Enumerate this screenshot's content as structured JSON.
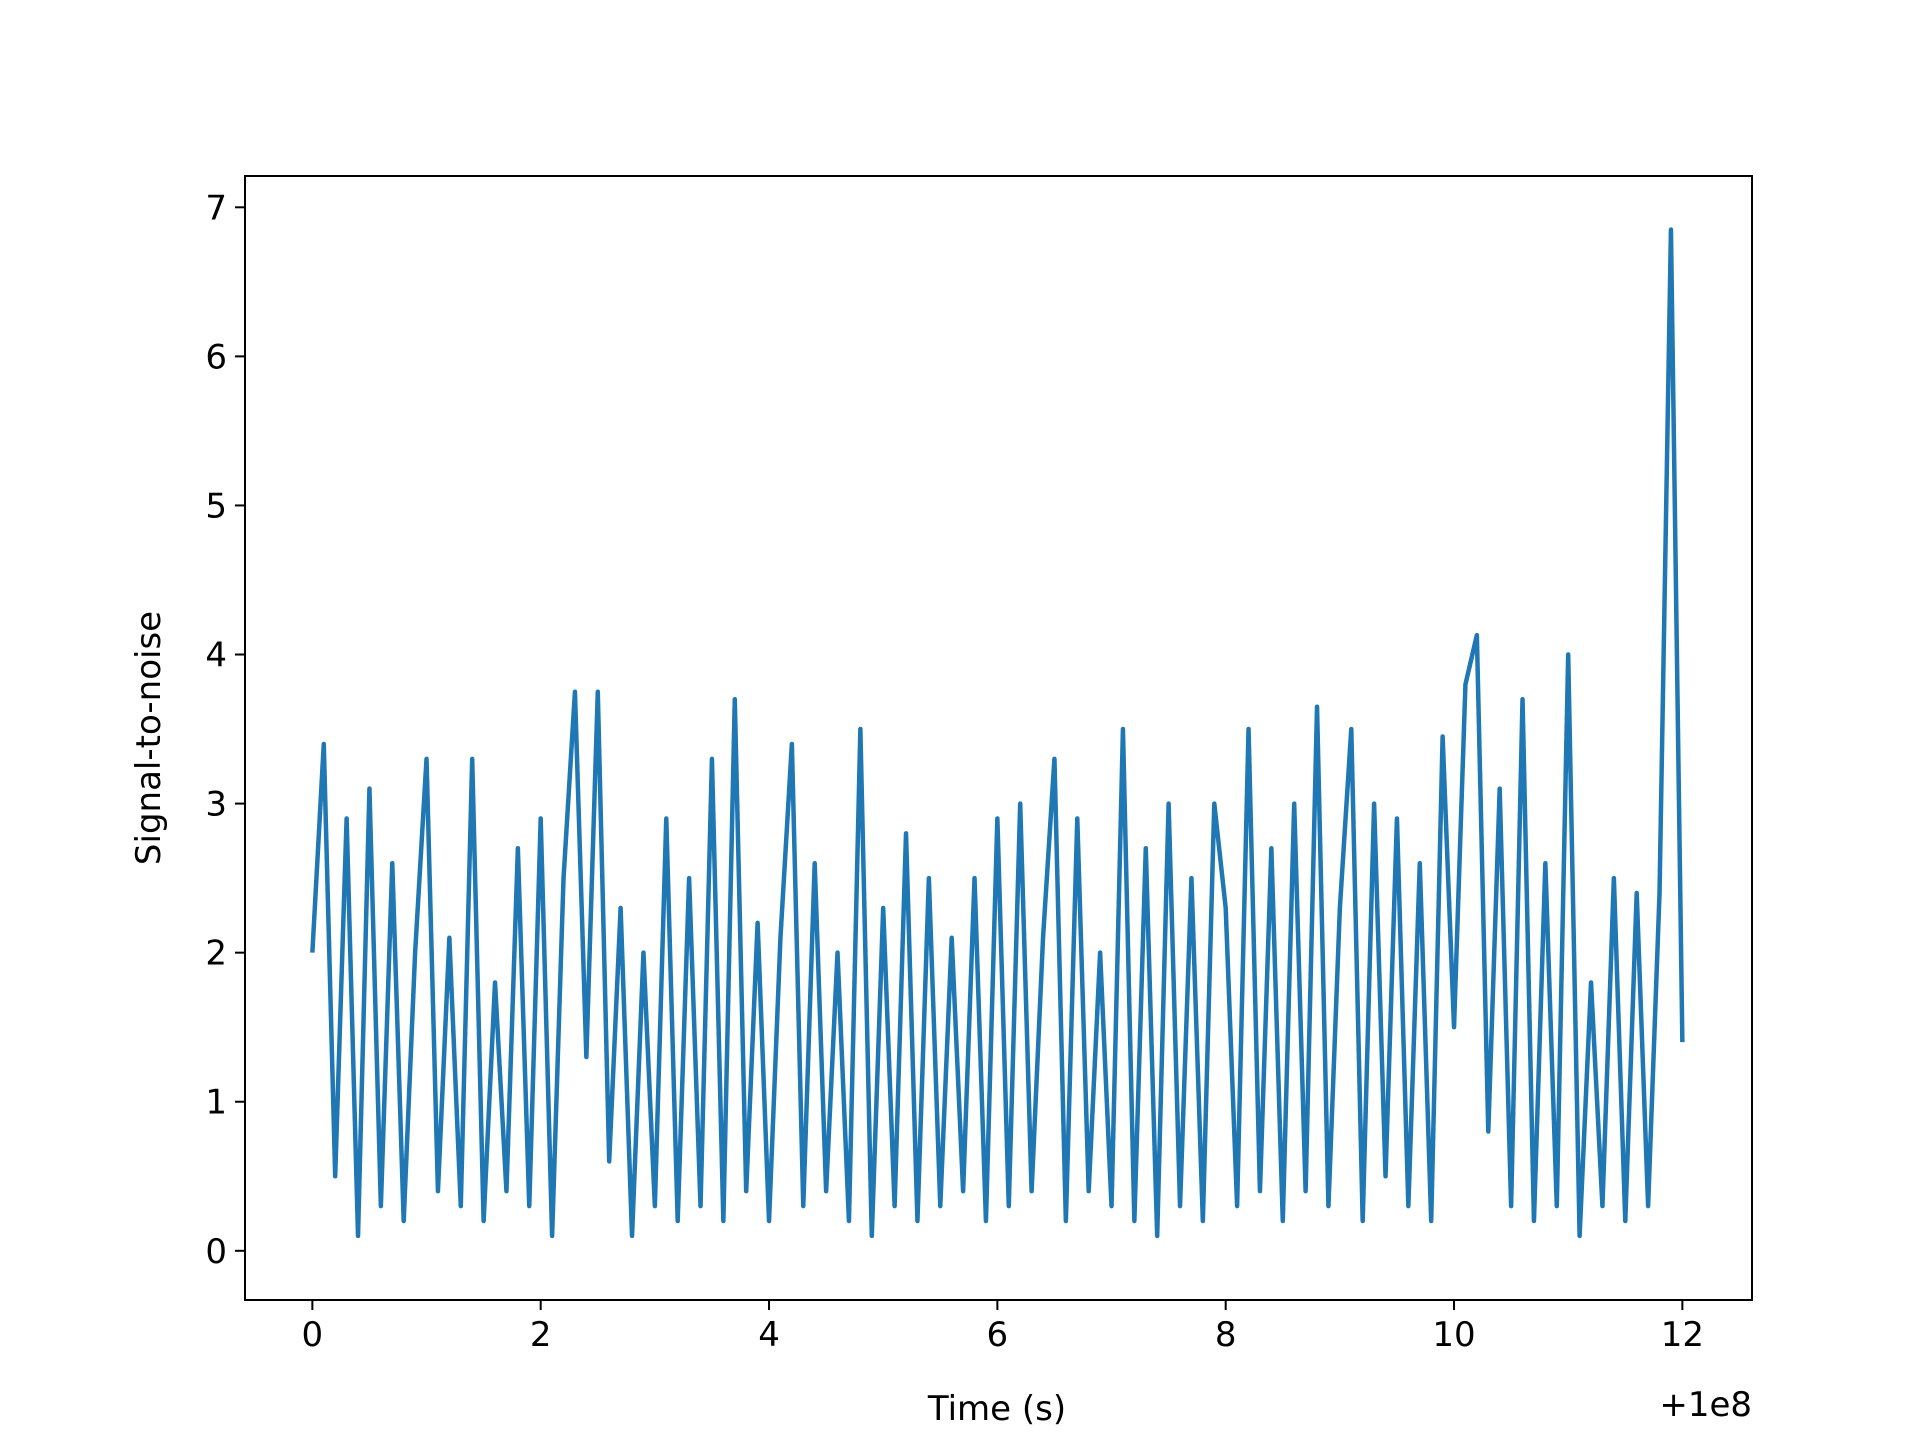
{
  "chart_data": {
    "type": "line",
    "xlabel": "Time (s)",
    "ylabel": "Signal-to-noise",
    "x_offset_label": "+1e8",
    "color": "#1f77b4",
    "x": [
      0,
      0.1,
      0.2,
      0.3,
      0.4,
      0.5,
      0.6,
      0.7,
      0.8,
      0.9,
      1,
      1.1,
      1.2,
      1.3,
      1.4,
      1.5,
      1.6,
      1.7,
      1.8,
      1.9,
      2,
      2.1,
      2.2,
      2.3,
      2.4,
      2.5,
      2.6,
      2.7,
      2.8,
      2.9,
      3,
      3.1,
      3.2,
      3.3,
      3.4,
      3.5,
      3.6,
      3.7,
      3.8,
      3.9,
      4,
      4.1,
      4.2,
      4.3,
      4.4,
      4.5,
      4.6,
      4.7,
      4.8,
      4.9,
      5,
      5.1,
      5.2,
      5.3,
      5.4,
      5.5,
      5.6,
      5.7,
      5.8,
      5.9,
      6,
      6.1,
      6.2,
      6.3,
      6.4,
      6.5,
      6.6,
      6.7,
      6.8,
      6.9,
      7,
      7.1,
      7.2,
      7.3,
      7.4,
      7.5,
      7.6,
      7.7,
      7.8,
      7.9,
      8,
      8.1,
      8.2,
      8.3,
      8.4,
      8.5,
      8.6,
      8.7,
      8.8,
      8.9,
      9,
      9.1,
      9.2,
      9.3,
      9.4,
      9.5,
      9.6,
      9.7,
      9.8,
      9.9,
      10,
      10.1,
      10.2,
      10.3,
      10.4,
      10.5,
      10.6,
      10.7,
      10.8,
      10.9,
      11,
      11.1,
      11.2,
      11.3,
      11.4,
      11.5,
      11.6,
      11.7,
      11.8,
      11.9,
      12
    ],
    "values": [
      2.0,
      3.4,
      0.5,
      2.9,
      0.1,
      3.1,
      0.3,
      2.6,
      0.2,
      2.0,
      3.3,
      0.4,
      2.1,
      0.3,
      3.3,
      0.2,
      1.8,
      0.4,
      2.7,
      0.3,
      2.9,
      0.1,
      2.5,
      3.75,
      1.3,
      3.75,
      0.6,
      2.3,
      0.1,
      2.0,
      0.3,
      2.9,
      0.2,
      2.5,
      0.3,
      3.3,
      0.2,
      3.7,
      0.4,
      2.2,
      0.2,
      2.1,
      3.4,
      0.3,
      2.6,
      0.4,
      2.0,
      0.2,
      3.5,
      0.1,
      2.3,
      0.3,
      2.8,
      0.2,
      2.5,
      0.3,
      2.1,
      0.4,
      2.5,
      0.2,
      2.9,
      0.3,
      3.0,
      0.4,
      2.1,
      3.3,
      0.2,
      2.9,
      0.4,
      2.0,
      0.3,
      3.5,
      0.2,
      2.7,
      0.1,
      3.0,
      0.3,
      2.5,
      0.2,
      3.0,
      2.3,
      0.3,
      3.5,
      0.4,
      2.7,
      0.2,
      3.0,
      0.4,
      3.65,
      0.3,
      2.3,
      3.5,
      0.2,
      3.0,
      0.5,
      2.9,
      0.3,
      2.6,
      0.2,
      3.45,
      1.5,
      3.8,
      4.13,
      0.8,
      3.1,
      0.3,
      3.7,
      0.2,
      2.6,
      0.3,
      4.0,
      0.1,
      1.8,
      0.3,
      2.5,
      0.2,
      2.4,
      0.3,
      2.4,
      6.85,
      1.4
    ],
    "xlim": [
      -0.59,
      12.61
    ],
    "ylim": [
      -0.33,
      7.21
    ],
    "xticks": [
      0,
      2,
      4,
      6,
      8,
      10,
      12
    ],
    "yticks": [
      0,
      1,
      2,
      3,
      4,
      5,
      6,
      7
    ]
  }
}
